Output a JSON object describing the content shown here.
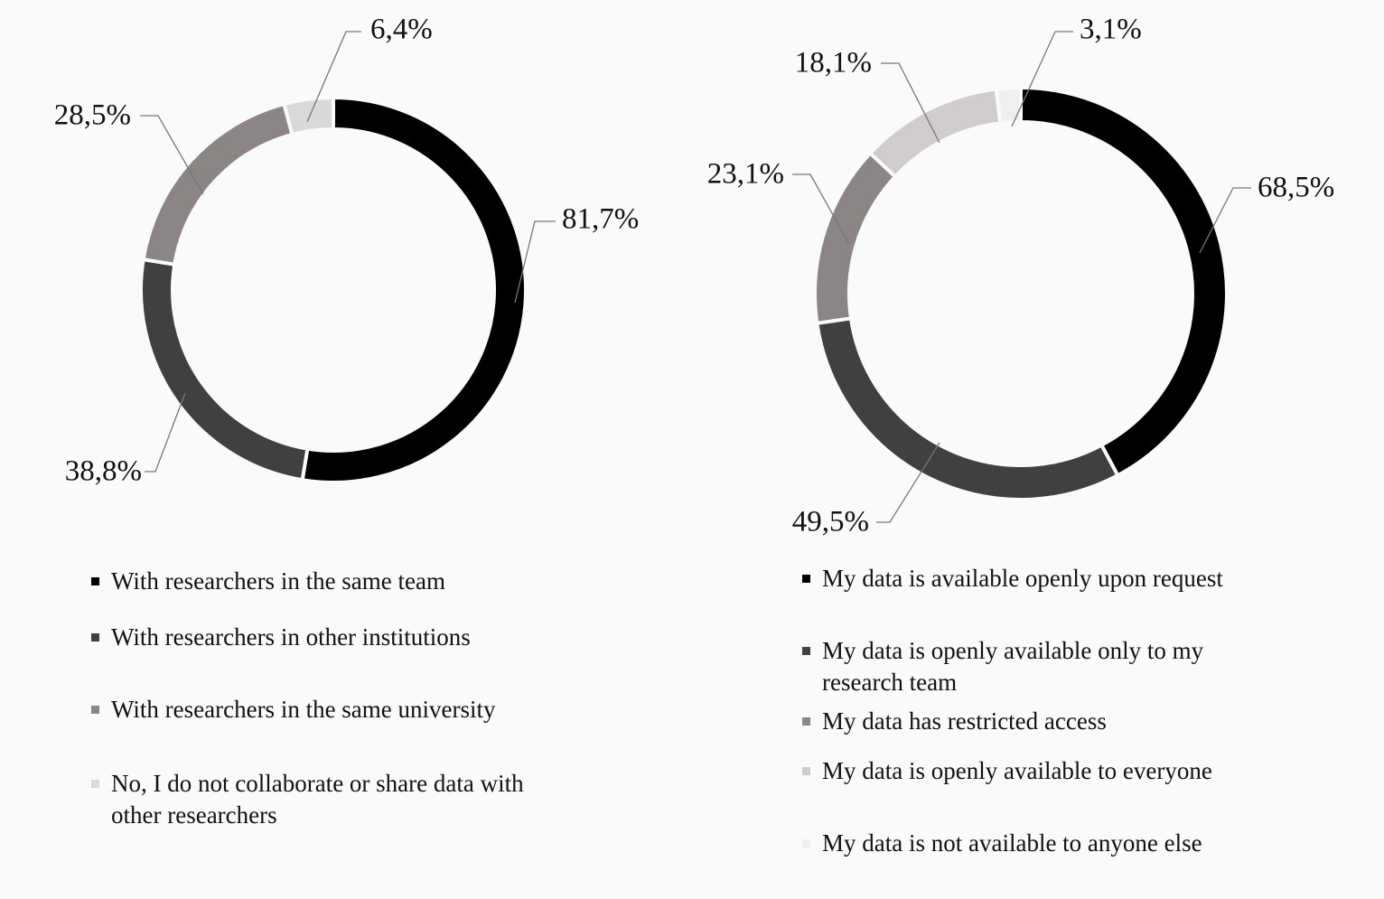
{
  "chart_data": [
    {
      "type": "donut",
      "categories": [
        "With researchers in the same team",
        "With researchers in other institutions",
        "With researchers in the same university",
        "No, I do not collaborate or share data with other researchers"
      ],
      "values": [
        81.7,
        38.8,
        28.5,
        6.4
      ],
      "value_labels": [
        "81,7%",
        "38,8%",
        "28,5%",
        "6,4%"
      ],
      "colors": [
        "#000000",
        "#404040",
        "#8c8585",
        "#d9d9d9"
      ]
    },
    {
      "type": "donut",
      "categories": [
        "My data is available openly upon request",
        "My data is openly available only to my research team",
        "My data has restricted access",
        "My data is openly available to everyone",
        "My data is not available to anyone else"
      ],
      "values": [
        68.5,
        49.5,
        23.1,
        18.1,
        3.1
      ],
      "value_labels": [
        "68,5%",
        "49,5%",
        "23,1%",
        "18,1%",
        "3,1%"
      ],
      "colors": [
        "#000000",
        "#404040",
        "#8c8585",
        "#d0cccc",
        "#efefef"
      ]
    }
  ]
}
